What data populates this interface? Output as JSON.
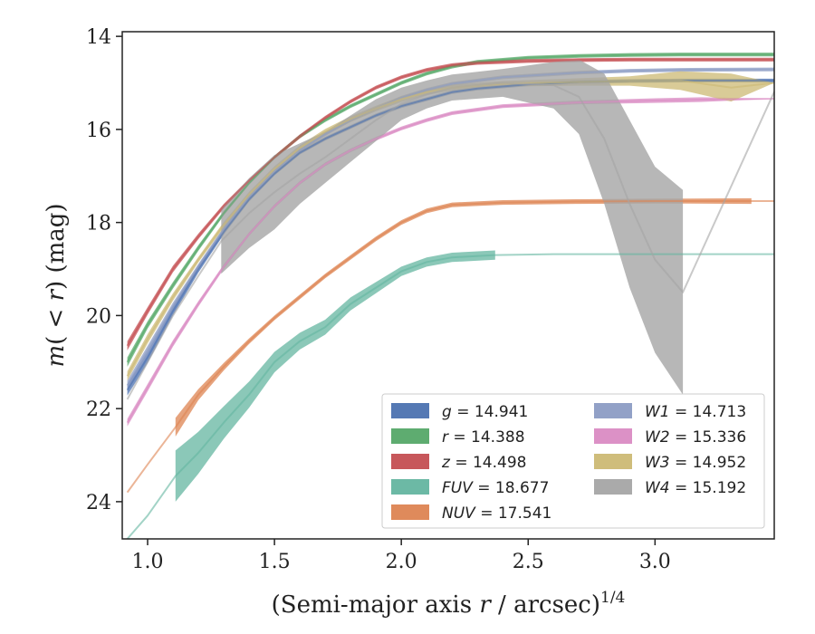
{
  "chart_data": {
    "type": "line",
    "xlabel": "(Semi-major axis r / arcsec)^{1/4}",
    "ylabel": "m(< r) (mag)",
    "xlim": [
      0.9,
      3.47
    ],
    "ylim": [
      24.8,
      13.9
    ],
    "y_inverted": true,
    "grid": false,
    "legend_position": "lower-right",
    "x_ticks": [
      "1.0",
      "1.5",
      "2.0",
      "2.5",
      "3.0"
    ],
    "x_tick_values": [
      1.0,
      1.5,
      2.0,
      2.5,
      3.0
    ],
    "y_ticks": [
      "14",
      "16",
      "18",
      "20",
      "22",
      "24"
    ],
    "y_tick_values": [
      14,
      16,
      18,
      20,
      22,
      24
    ],
    "series": [
      {
        "name": "g = 14.941",
        "label_math": "g",
        "value": "14.941",
        "color": "#4c72b0",
        "x": [
          0.92,
          1.0,
          1.1,
          1.2,
          1.3,
          1.4,
          1.5,
          1.6,
          1.7,
          1.8,
          1.9,
          2.0,
          2.1,
          2.2,
          2.3,
          2.5,
          2.7,
          2.9,
          3.1,
          3.47
        ],
        "y": [
          21.6,
          20.9,
          19.9,
          19.0,
          18.2,
          17.5,
          16.95,
          16.5,
          16.2,
          15.95,
          15.7,
          15.5,
          15.35,
          15.2,
          15.12,
          15.03,
          14.98,
          14.96,
          14.95,
          14.95
        ],
        "band": [
          0.12,
          0.12,
          0.1,
          0.08,
          0.06,
          0.05,
          0.04,
          0.04,
          0.04,
          0.04,
          0.04,
          0.04,
          0.04,
          0.04,
          0.04,
          0.04,
          0.04,
          0.04,
          0.04,
          0.04
        ]
      },
      {
        "name": "r = 14.388",
        "label_math": "r",
        "value": "14.388",
        "color": "#55a868",
        "x": [
          0.92,
          1.0,
          1.1,
          1.2,
          1.3,
          1.4,
          1.5,
          1.6,
          1.7,
          1.8,
          1.9,
          2.0,
          2.1,
          2.2,
          2.3,
          2.5,
          2.7,
          2.9,
          3.1,
          3.47
        ],
        "y": [
          21.0,
          20.2,
          19.35,
          18.55,
          17.8,
          17.15,
          16.6,
          16.15,
          15.8,
          15.5,
          15.25,
          15.0,
          14.8,
          14.65,
          14.55,
          14.46,
          14.42,
          14.4,
          14.39,
          14.39
        ],
        "band": [
          0.1,
          0.08,
          0.07,
          0.06,
          0.05,
          0.04,
          0.04,
          0.04,
          0.04,
          0.04,
          0.04,
          0.04,
          0.04,
          0.04,
          0.04,
          0.04,
          0.04,
          0.04,
          0.04,
          0.04
        ]
      },
      {
        "name": "z = 14.498",
        "label_math": "z",
        "value": "14.498",
        "color": "#c44e52",
        "x": [
          0.92,
          1.0,
          1.1,
          1.2,
          1.3,
          1.4,
          1.5,
          1.6,
          1.7,
          1.8,
          1.9,
          2.0,
          2.1,
          2.2,
          2.3,
          2.5,
          2.7,
          2.9,
          3.1,
          3.47
        ],
        "y": [
          20.65,
          19.9,
          19.0,
          18.3,
          17.65,
          17.1,
          16.6,
          16.15,
          15.75,
          15.4,
          15.1,
          14.88,
          14.72,
          14.62,
          14.57,
          14.53,
          14.51,
          14.5,
          14.5,
          14.5
        ],
        "band": [
          0.1,
          0.08,
          0.07,
          0.06,
          0.05,
          0.04,
          0.04,
          0.04,
          0.04,
          0.04,
          0.04,
          0.04,
          0.04,
          0.04,
          0.04,
          0.04,
          0.04,
          0.04,
          0.04,
          0.04
        ]
      },
      {
        "name": "FUV = 18.677",
        "label_math": "FUV",
        "value": "18.677",
        "color": "#64b5a0",
        "x": [
          0.92,
          1.0,
          1.11,
          1.2,
          1.3,
          1.4,
          1.5,
          1.6,
          1.7,
          1.8,
          1.9,
          2.0,
          2.1,
          2.2,
          2.37,
          2.6,
          3.0,
          3.47
        ],
        "y": [
          24.8,
          24.3,
          23.45,
          22.95,
          22.3,
          21.7,
          21.0,
          20.55,
          20.25,
          19.75,
          19.4,
          19.05,
          18.85,
          18.75,
          18.7,
          18.68,
          18.68,
          18.68
        ],
        "band_from": 1.11,
        "band_to": 2.37,
        "band": [
          0.0,
          0.0,
          0.55,
          0.45,
          0.35,
          0.28,
          0.22,
          0.18,
          0.16,
          0.14,
          0.12,
          0.1,
          0.1,
          0.1,
          0.1,
          0.0,
          0.0,
          0.0
        ]
      },
      {
        "name": "NUV = 17.541",
        "label_math": "NUV",
        "value": "17.541",
        "color": "#dd8452",
        "x": [
          0.92,
          1.0,
          1.11,
          1.2,
          1.3,
          1.4,
          1.5,
          1.6,
          1.7,
          1.8,
          1.9,
          2.0,
          2.1,
          2.2,
          2.4,
          2.7,
          3.0,
          3.38,
          3.47
        ],
        "y": [
          23.8,
          23.2,
          22.4,
          21.7,
          21.1,
          20.55,
          20.05,
          19.6,
          19.15,
          18.75,
          18.35,
          18.0,
          17.75,
          17.62,
          17.57,
          17.55,
          17.54,
          17.54,
          17.54
        ],
        "band_from": 1.11,
        "band_to": 3.38,
        "band": [
          0.0,
          0.0,
          0.2,
          0.12,
          0.08,
          0.06,
          0.05,
          0.05,
          0.05,
          0.05,
          0.05,
          0.05,
          0.05,
          0.05,
          0.05,
          0.05,
          0.05,
          0.06,
          0.0
        ]
      },
      {
        "name": "W1 = 14.713",
        "label_math": "W1",
        "value": "14.713",
        "color": "#8c9cc4",
        "x": [
          0.92,
          1.0,
          1.1,
          1.2,
          1.3,
          1.4,
          1.5,
          1.6,
          1.7,
          1.8,
          1.9,
          2.0,
          2.1,
          2.2,
          2.4,
          2.7,
          2.9,
          3.1,
          3.47
        ],
        "y": [
          21.5,
          20.75,
          19.8,
          18.95,
          18.15,
          17.45,
          16.9,
          16.45,
          16.1,
          15.8,
          15.55,
          15.32,
          15.15,
          15.02,
          14.88,
          14.78,
          14.74,
          14.72,
          14.71
        ],
        "band": [
          0.1,
          0.1,
          0.08,
          0.06,
          0.05,
          0.04,
          0.04,
          0.04,
          0.04,
          0.04,
          0.04,
          0.04,
          0.04,
          0.04,
          0.04,
          0.04,
          0.04,
          0.04,
          0.04
        ]
      },
      {
        "name": "W2 = 15.336",
        "label_math": "W2",
        "value": "15.336",
        "color": "#da8bc3",
        "x": [
          0.92,
          1.0,
          1.1,
          1.2,
          1.3,
          1.4,
          1.5,
          1.6,
          1.7,
          1.8,
          1.9,
          2.0,
          2.1,
          2.2,
          2.4,
          2.7,
          3.0,
          3.18,
          3.47
        ],
        "y": [
          22.3,
          21.55,
          20.6,
          19.75,
          18.95,
          18.25,
          17.65,
          17.15,
          16.75,
          16.45,
          16.2,
          15.98,
          15.8,
          15.65,
          15.5,
          15.42,
          15.38,
          15.36,
          15.34
        ],
        "band": [
          0.08,
          0.08,
          0.07,
          0.06,
          0.05,
          0.04,
          0.04,
          0.04,
          0.04,
          0.04,
          0.04,
          0.04,
          0.04,
          0.04,
          0.04,
          0.04,
          0.05,
          0.05,
          0.0
        ]
      },
      {
        "name": "W3 = 14.952",
        "label_math": "W3",
        "value": "14.952",
        "color": "#ccb974",
        "x": [
          0.92,
          1.0,
          1.1,
          1.2,
          1.3,
          1.4,
          1.5,
          1.6,
          1.7,
          1.8,
          1.9,
          2.0,
          2.1,
          2.2,
          2.4,
          2.7,
          2.9,
          3.1,
          3.3,
          3.47
        ],
        "y": [
          21.3,
          20.5,
          19.6,
          18.8,
          18.05,
          17.4,
          16.85,
          16.4,
          16.05,
          15.78,
          15.55,
          15.35,
          15.2,
          15.1,
          15.02,
          14.98,
          14.96,
          14.95,
          15.1,
          15.0
        ],
        "band": [
          0.1,
          0.1,
          0.08,
          0.06,
          0.06,
          0.06,
          0.06,
          0.06,
          0.06,
          0.06,
          0.06,
          0.06,
          0.06,
          0.06,
          0.06,
          0.08,
          0.1,
          0.2,
          0.3,
          0.0
        ]
      },
      {
        "name": "W4 = 15.192",
        "label_math": "W4",
        "value": "15.192",
        "color": "#a5a5a5",
        "x": [
          0.92,
          1.0,
          1.1,
          1.2,
          1.29,
          1.4,
          1.5,
          1.6,
          1.7,
          1.8,
          1.9,
          2.0,
          2.1,
          2.2,
          2.4,
          2.6,
          2.7,
          2.8,
          2.9,
          3.0,
          3.11,
          3.47
        ],
        "y": [
          21.8,
          21.0,
          20.0,
          19.15,
          18.4,
          17.8,
          17.35,
          16.95,
          16.6,
          16.2,
          15.8,
          15.45,
          15.25,
          15.1,
          15.0,
          15.05,
          15.3,
          16.2,
          17.6,
          18.8,
          19.5,
          15.19
        ],
        "band_from": 1.29,
        "band_to": 3.11,
        "band": [
          0.0,
          0.0,
          0.0,
          0.0,
          0.7,
          0.75,
          0.8,
          0.65,
          0.55,
          0.5,
          0.45,
          0.35,
          0.3,
          0.28,
          0.3,
          0.5,
          0.8,
          1.4,
          1.8,
          2.0,
          2.2,
          0.0
        ]
      }
    ]
  }
}
